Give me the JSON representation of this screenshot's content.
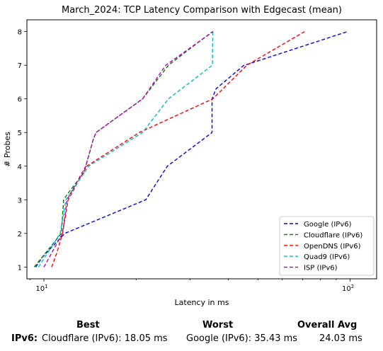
{
  "chart_data": {
    "type": "line",
    "title": "March_2024: TCP Latency Comparison with Edgecast (mean)",
    "xlabel": "Latency in ms",
    "ylabel": "# Probes",
    "xscale": "log",
    "xlim": [
      8.8,
      122
    ],
    "ylim": [
      0.65,
      8.35
    ],
    "xticks": [
      {
        "value": 10,
        "label": "10",
        "sup": "1"
      },
      {
        "value": 100,
        "label": "10",
        "sup": "2"
      }
    ],
    "yticks": [
      1,
      2,
      3,
      4,
      5,
      6,
      7,
      8
    ],
    "grid": false,
    "legend_position": "lower right",
    "line_style": "dashed",
    "series": [
      {
        "name": "Google (IPv6)",
        "color": "#0000ee",
        "x": [
          9.4,
          9.9,
          11.7,
          21.5,
          25.3,
          35.4,
          35.4,
          36.5,
          45.0,
          47.0,
          98.0
        ],
        "y": [
          1,
          1.3,
          2,
          3,
          4,
          5,
          6,
          6.3,
          7,
          7.05,
          8
        ]
      },
      {
        "name": "Cloudflare (IPv6)",
        "color": "#008000",
        "x": [
          9.3,
          11.4,
          11.6,
          12.0,
          13.5,
          14.5,
          14.8,
          21.0,
          25.5,
          35.5
        ],
        "y": [
          1,
          2,
          3,
          3.2,
          3.8,
          4.8,
          5,
          6,
          7,
          8
        ]
      },
      {
        "name": "OpenDNS (IPv6)",
        "color": "#ff0000",
        "x": [
          10.6,
          11.0,
          11.5,
          12.0,
          13.8,
          20.5,
          35.6,
          46.0,
          71.0
        ],
        "y": [
          1,
          1.4,
          2,
          3,
          4,
          5,
          6,
          7,
          8
        ]
      },
      {
        "name": "Quad9 (IPv6)",
        "color": "#00bfbf",
        "x": [
          9.6,
          11.3,
          11.8,
          14.0,
          21.0,
          25.5,
          35.5,
          35.6
        ],
        "y": [
          1,
          2,
          3,
          4,
          5,
          6,
          7,
          8
        ]
      },
      {
        "name": "ISP (IPv6)",
        "color": "#bf00bf",
        "x": [
          10.0,
          11.5,
          11.9,
          13.7,
          14.5,
          14.8,
          21.0,
          25.0,
          35.7
        ],
        "y": [
          1,
          2,
          3,
          4,
          4.8,
          5,
          6,
          7,
          8
        ]
      }
    ]
  },
  "summary": {
    "best_label": "Best",
    "worst_label": "Worst",
    "avg_label": "Overall Avg",
    "row_label": "IPv6:",
    "best_value": "Cloudflare (IPv6): 18.05 ms",
    "worst_value": "Google (IPv6): 35.43 ms",
    "avg_value": "24.03 ms"
  }
}
